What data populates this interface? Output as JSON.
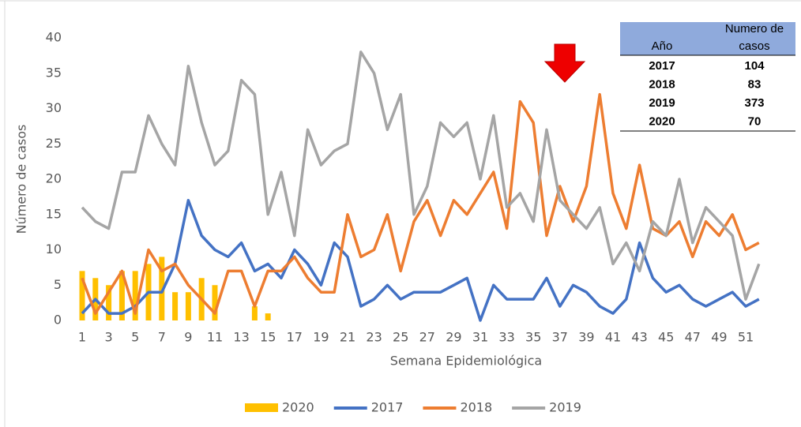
{
  "chart_data": {
    "type": "combo",
    "y_label": "Número de casos",
    "x_label": "Semana Epidemiológica",
    "categories": [
      1,
      null,
      3,
      null,
      5,
      null,
      7,
      null,
      9,
      null,
      11,
      null,
      13,
      null,
      15,
      null,
      17,
      null,
      19,
      null,
      21,
      null,
      23,
      null,
      25,
      null,
      27,
      null,
      29,
      null,
      31,
      null,
      33,
      null,
      35,
      null,
      37,
      null,
      39,
      null,
      41,
      null,
      43,
      null,
      45,
      null,
      47,
      null,
      49,
      null,
      51,
      null
    ],
    "ylim": [
      0,
      40
    ],
    "yticks": [
      0,
      5,
      10,
      15,
      20,
      25,
      30,
      35,
      40
    ],
    "series": [
      {
        "name": "2020",
        "kind": "bar",
        "color": "#ffc000",
        "values": [
          7,
          6,
          5,
          7,
          7,
          8,
          9,
          4,
          4,
          6,
          5,
          null,
          null,
          2,
          1,
          null,
          null,
          null,
          null,
          null,
          null,
          null,
          null,
          null,
          null,
          null,
          null,
          null,
          null,
          null,
          null,
          null,
          null,
          null,
          null,
          null,
          null,
          null,
          null,
          null,
          null,
          null,
          null,
          null,
          null,
          null,
          null,
          null,
          null,
          null,
          null,
          null
        ]
      },
      {
        "name": "2017",
        "kind": "line",
        "color": "#4472c4",
        "values": [
          1,
          3,
          1,
          1,
          2,
          4,
          4,
          8,
          17,
          12,
          10,
          9,
          11,
          7,
          8,
          6,
          10,
          8,
          5,
          11,
          9,
          2,
          3,
          5,
          3,
          4,
          4,
          4,
          5,
          6,
          0,
          5,
          3,
          3,
          3,
          6,
          2,
          5,
          4,
          2,
          1,
          3,
          11,
          6,
          4,
          5,
          3,
          2,
          3,
          4,
          2,
          3
        ]
      },
      {
        "name": "2018",
        "kind": "line",
        "color": "#ed7d31",
        "values": [
          6,
          1,
          4,
          7,
          1,
          10,
          7,
          8,
          5,
          3,
          1,
          7,
          7,
          2,
          7,
          7,
          9,
          6,
          4,
          4,
          15,
          9,
          10,
          15,
          7,
          14,
          17,
          12,
          17,
          15,
          18,
          21,
          13,
          31,
          28,
          12,
          19,
          14,
          19,
          32,
          18,
          13,
          22,
          13,
          12,
          14,
          9,
          14,
          12,
          15,
          10,
          11
        ]
      },
      {
        "name": "2019",
        "kind": "line",
        "color": "#a5a5a5",
        "values": [
          16,
          14,
          13,
          21,
          21,
          29,
          25,
          22,
          36,
          28,
          22,
          24,
          34,
          32,
          15,
          21,
          12,
          27,
          22,
          24,
          25,
          38,
          35,
          27,
          32,
          15,
          19,
          28,
          26,
          28,
          20,
          29,
          16,
          18,
          14,
          27,
          17,
          15,
          13,
          16,
          8,
          11,
          7,
          14,
          12,
          20,
          11,
          16,
          14,
          12,
          3,
          8
        ]
      }
    ]
  },
  "table": {
    "columns": [
      "Año",
      "Numero de casos"
    ],
    "rows": [
      [
        "2017",
        "104"
      ],
      [
        "2018",
        "83"
      ],
      [
        "2019",
        "373"
      ],
      [
        "2020",
        "70"
      ]
    ]
  }
}
